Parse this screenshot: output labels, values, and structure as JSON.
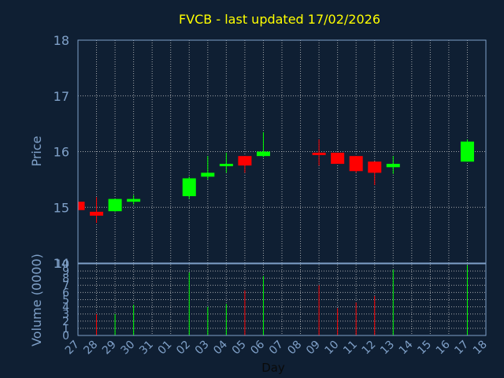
{
  "chart_data": {
    "type": "candlestick",
    "title": "FVCB - last updated 17/02/2026",
    "xlabel": "Day",
    "price_ylabel": "Price",
    "volume_ylabel": "Volume (0000)",
    "price_ylim": [
      14,
      18
    ],
    "price_yticks": [
      "14",
      "15",
      "16",
      "17",
      "18"
    ],
    "volume_ylim": [
      0,
      10
    ],
    "volume_yticks": [
      "0",
      "1",
      "2",
      "3",
      "4",
      "5",
      "6",
      "7",
      "8",
      "9",
      "10"
    ],
    "x_ticks": [
      "27",
      "28",
      "29",
      "30",
      "31",
      "01",
      "02",
      "03",
      "04",
      "05",
      "06",
      "07",
      "08",
      "09",
      "10",
      "11",
      "12",
      "13",
      "14",
      "15",
      "16",
      "17",
      "18"
    ],
    "grid": true,
    "colors": {
      "background": "#0f1f33",
      "up": "#00ff00",
      "down": "#ff0000",
      "grid": "#c8c8c8",
      "axis": "#7fa0c8",
      "title": "#ffff00"
    },
    "candles": [
      {
        "day": "27",
        "open": 15.1,
        "high": 15.1,
        "low": 14.9,
        "close": 14.95
      },
      {
        "day": "28",
        "open": 14.92,
        "high": 15.18,
        "low": 14.72,
        "close": 14.85
      },
      {
        "day": "29",
        "open": 14.93,
        "high": 15.15,
        "low": 14.92,
        "close": 15.15
      },
      {
        "day": "30",
        "open": 15.1,
        "high": 15.22,
        "low": 15.05,
        "close": 15.15
      },
      {
        "day": "02",
        "open": 15.2,
        "high": 15.55,
        "low": 15.15,
        "close": 15.52
      },
      {
        "day": "03",
        "open": 15.55,
        "high": 15.92,
        "low": 15.5,
        "close": 15.62
      },
      {
        "day": "04",
        "open": 15.75,
        "high": 15.98,
        "low": 15.62,
        "close": 15.78
      },
      {
        "day": "05",
        "open": 15.92,
        "high": 15.92,
        "low": 15.62,
        "close": 15.75
      },
      {
        "day": "06",
        "open": 15.92,
        "high": 16.35,
        "low": 15.9,
        "close": 16.0
      },
      {
        "day": "09",
        "open": 15.98,
        "high": 16.22,
        "low": 15.75,
        "close": 15.97
      },
      {
        "day": "10",
        "open": 15.98,
        "high": 15.98,
        "low": 15.78,
        "close": 15.78
      },
      {
        "day": "11",
        "open": 15.92,
        "high": 15.92,
        "low": 15.62,
        "close": 15.65
      },
      {
        "day": "12",
        "open": 15.82,
        "high": 15.82,
        "low": 15.4,
        "close": 15.62
      },
      {
        "day": "13",
        "open": 15.72,
        "high": 15.92,
        "low": 15.6,
        "close": 15.78
      },
      {
        "day": "17",
        "open": 15.82,
        "high": 16.22,
        "low": 15.82,
        "close": 16.18
      }
    ],
    "volume": [
      {
        "day": "28",
        "value": 3.0,
        "dir": "down"
      },
      {
        "day": "29",
        "value": 3.0,
        "dir": "up"
      },
      {
        "day": "30",
        "value": 4.3,
        "dir": "up"
      },
      {
        "day": "02",
        "value": 8.8,
        "dir": "up"
      },
      {
        "day": "03",
        "value": 4.0,
        "dir": "up"
      },
      {
        "day": "04",
        "value": 4.4,
        "dir": "up"
      },
      {
        "day": "05",
        "value": 6.3,
        "dir": "down"
      },
      {
        "day": "06",
        "value": 8.3,
        "dir": "up"
      },
      {
        "day": "09",
        "value": 7.0,
        "dir": "down"
      },
      {
        "day": "10",
        "value": 3.8,
        "dir": "down"
      },
      {
        "day": "11",
        "value": 4.6,
        "dir": "down"
      },
      {
        "day": "12",
        "value": 5.5,
        "dir": "down"
      },
      {
        "day": "13",
        "value": 9.2,
        "dir": "up"
      },
      {
        "day": "17",
        "value": 9.8,
        "dir": "up"
      }
    ]
  }
}
